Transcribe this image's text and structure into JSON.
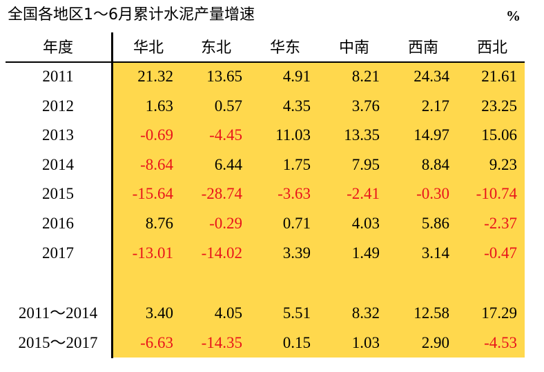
{
  "title": "全国各地区1～6月累计水泥产量增速",
  "unit": "%",
  "header": {
    "year_label": "年度",
    "regions": [
      "华北",
      "东北",
      "华东",
      "中南",
      "西南",
      "西北"
    ]
  },
  "rows": [
    {
      "year": "2011",
      "values": [
        "21.32",
        "13.65",
        "4.91",
        "8.21",
        "24.34",
        "21.61"
      ]
    },
    {
      "year": "2012",
      "values": [
        "1.63",
        "0.57",
        "4.35",
        "3.76",
        "2.17",
        "23.25"
      ]
    },
    {
      "year": "2013",
      "values": [
        "-0.69",
        "-4.45",
        "11.03",
        "13.35",
        "14.97",
        "15.06"
      ]
    },
    {
      "year": "2014",
      "values": [
        "-8.64",
        "6.44",
        "1.75",
        "7.95",
        "8.84",
        "9.23"
      ]
    },
    {
      "year": "2015",
      "values": [
        "-15.64",
        "-28.74",
        "-3.63",
        "-2.41",
        "-0.30",
        "-10.74"
      ]
    },
    {
      "year": "2016",
      "values": [
        "8.76",
        "-0.29",
        "0.71",
        "4.03",
        "5.86",
        "-2.37"
      ]
    },
    {
      "year": "2017",
      "values": [
        "-13.01",
        "-14.02",
        "3.39",
        "1.49",
        "3.14",
        "-0.47"
      ]
    }
  ],
  "summary_rows": [
    {
      "year": "2011～2014",
      "values": [
        "3.40",
        "4.05",
        "5.51",
        "8.32",
        "12.58",
        "17.29"
      ]
    },
    {
      "year": "2015～2017",
      "values": [
        "-6.63",
        "-14.35",
        "0.15",
        "1.03",
        "2.90",
        "-4.53"
      ]
    }
  ],
  "colors": {
    "background_fill": "#FFD84D",
    "negative_text": "#E8141B",
    "positive_text": "#000000"
  }
}
